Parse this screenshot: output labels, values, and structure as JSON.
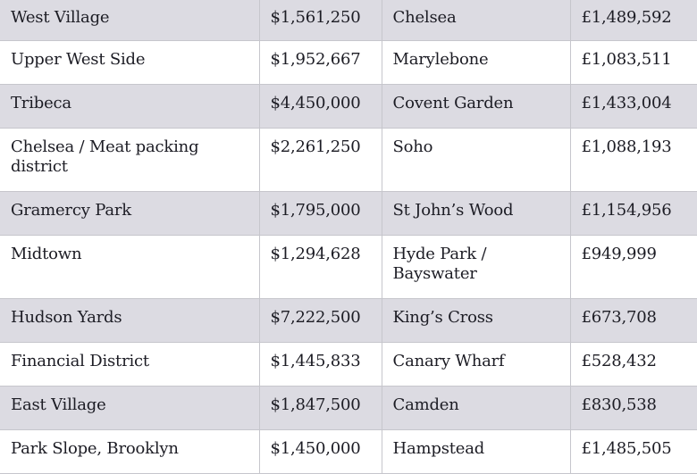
{
  "table": {
    "rows": [
      {
        "ny_area": "West Village",
        "ny_price": "$1,561,250",
        "ldn_area": "Chelsea",
        "ldn_price": "£1,489,592"
      },
      {
        "ny_area": "Upper West Side",
        "ny_price": "$1,952,667",
        "ldn_area": "Marylebone",
        "ldn_price": "£1,083,511"
      },
      {
        "ny_area": "Tribeca",
        "ny_price": "$4,450,000",
        "ldn_area": "Covent Garden",
        "ldn_price": "£1,433,004"
      },
      {
        "ny_area": "Chelsea / Meat packing district",
        "ny_price": "$2,261,250",
        "ldn_area": "Soho",
        "ldn_price": "£1,088,193"
      },
      {
        "ny_area": "Gramercy Park",
        "ny_price": "$1,795,000",
        "ldn_area": "St John’s Wood",
        "ldn_price": "£1,154,956"
      },
      {
        "ny_area": "Midtown",
        "ny_price": "$1,294,628",
        "ldn_area": "Hyde Park / Bayswater",
        "ldn_price": "£949,999"
      },
      {
        "ny_area": "Hudson Yards",
        "ny_price": "$7,222,500",
        "ldn_area": "King’s Cross",
        "ldn_price": "£673,708"
      },
      {
        "ny_area": "Financial District",
        "ny_price": "$1,445,833",
        "ldn_area": "Canary Wharf",
        "ldn_price": "£528,432"
      },
      {
        "ny_area": "East Village",
        "ny_price": "$1,847,500",
        "ldn_area": "Camden",
        "ldn_price": "£830,538"
      },
      {
        "ny_area": "Park Slope, Brooklyn",
        "ny_price": "$1,450,000",
        "ldn_area": "Hampstead",
        "ldn_price": "£1,485,505"
      }
    ]
  }
}
